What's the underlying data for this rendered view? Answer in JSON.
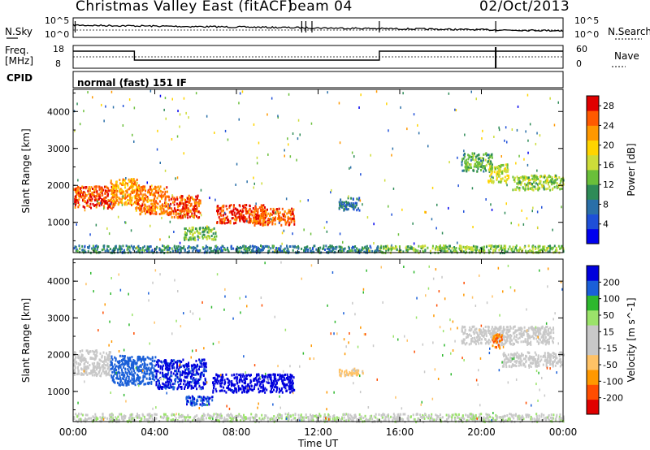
{
  "header": {
    "station": "Christmas Valley East (fitACF)",
    "beam": "beam 04",
    "date": "02/Oct/2013"
  },
  "noise_panel": {
    "left_label": "N.Sky",
    "right_label": "N.Search",
    "left_ticks": [
      "10^5",
      "10^0"
    ],
    "right_ticks": [
      "10^5",
      "10^0"
    ]
  },
  "freq_panel": {
    "left_label_line1": "Freq.",
    "left_label_line2": "[MHz]",
    "right_label": "Nave",
    "left_ticks": [
      "18",
      "8"
    ],
    "right_ticks": [
      "60",
      "0"
    ]
  },
  "cpid": {
    "label": "CPID",
    "value": "normal (fast) 151 IF"
  },
  "chart_data": [
    {
      "type": "heatmap",
      "title": "",
      "xlabel": "Time UT",
      "ylabel": "Slant Range [km]",
      "x_ticks": [
        "00:00",
        "04:00",
        "08:00",
        "12:00",
        "16:00",
        "20:00",
        "00:00"
      ],
      "xlim_hours": [
        0,
        24
      ],
      "y_ticks": [
        "1000",
        "2000",
        "3000",
        "4000"
      ],
      "ylim_km": [
        180,
        4600
      ],
      "colorbar": {
        "label": "Power [dB]",
        "ticks": [
          "4",
          "8",
          "12",
          "16",
          "20",
          "24",
          "28"
        ],
        "range": [
          0,
          30
        ],
        "colors": [
          "#0000ee",
          "#1e4fd8",
          "#2a6fa8",
          "#2e8b57",
          "#6abf3a",
          "#cddc39",
          "#ffd400",
          "#ff9800",
          "#ff5a00",
          "#e00000"
        ]
      },
      "features": [
        {
          "t0": 0.0,
          "t1": 2.0,
          "r0": 1400,
          "r1": 2000,
          "level": 26
        },
        {
          "t0": 1.8,
          "t1": 3.2,
          "r0": 1500,
          "r1": 2200,
          "level": 22
        },
        {
          "t0": 3.0,
          "t1": 4.6,
          "r0": 1250,
          "r1": 2000,
          "level": 24
        },
        {
          "t0": 4.6,
          "t1": 6.2,
          "r0": 1150,
          "r1": 1750,
          "level": 26
        },
        {
          "t0": 5.4,
          "t1": 7.0,
          "r0": 550,
          "r1": 900,
          "level": 14
        },
        {
          "t0": 7.0,
          "t1": 9.4,
          "r0": 1000,
          "r1": 1500,
          "level": 27
        },
        {
          "t0": 8.8,
          "t1": 10.8,
          "r0": 950,
          "r1": 1400,
          "level": 25
        },
        {
          "t0": 0.0,
          "t1": 15.0,
          "r0": 200,
          "r1": 400,
          "level": 9
        },
        {
          "t0": 15.0,
          "t1": 24.0,
          "r0": 200,
          "r1": 400,
          "level": 14
        },
        {
          "t0": 13.0,
          "t1": 14.0,
          "r0": 1350,
          "r1": 1700,
          "level": 8
        },
        {
          "t0": 19.0,
          "t1": 20.5,
          "r0": 2400,
          "r1": 2900,
          "level": 12
        },
        {
          "t0": 20.3,
          "t1": 21.3,
          "r0": 2100,
          "r1": 2600,
          "level": 17
        },
        {
          "t0": 21.5,
          "t1": 24.0,
          "r0": 1900,
          "r1": 2300,
          "level": 15
        }
      ]
    },
    {
      "type": "heatmap",
      "title": "",
      "xlabel": "Time UT",
      "ylabel": "Slant Range [km]",
      "x_ticks": [
        "00:00",
        "04:00",
        "08:00",
        "12:00",
        "16:00",
        "20:00",
        "00:00"
      ],
      "xlim_hours": [
        0,
        24
      ],
      "y_ticks": [
        "1000",
        "2000",
        "3000",
        "4000"
      ],
      "ylim_km": [
        180,
        4600
      ],
      "colorbar": {
        "label": "Velocity [m s^-1]",
        "ticks": [
          "200",
          "100",
          "50",
          "15",
          "-15",
          "-50",
          "-100",
          "-200"
        ],
        "range": [
          -250,
          250
        ],
        "colors": [
          "#e00000",
          "#ff4d00",
          "#ff9800",
          "#ffc266",
          "#c8c8c8",
          "#c8c8c8",
          "#9be36a",
          "#2eb82e",
          "#1a5fd8",
          "#0000dd"
        ]
      },
      "features": [
        {
          "t0": 0.0,
          "t1": 1.8,
          "r0": 1450,
          "r1": 2150,
          "level": 0
        },
        {
          "t0": 1.8,
          "t1": 4.0,
          "r0": 1200,
          "r1": 2000,
          "level": 180
        },
        {
          "t0": 4.0,
          "t1": 6.5,
          "r0": 1100,
          "r1": 1900,
          "level": 210
        },
        {
          "t0": 5.5,
          "t1": 7.0,
          "r0": 650,
          "r1": 900,
          "level": 190
        },
        {
          "t0": 6.8,
          "t1": 10.8,
          "r0": 1000,
          "r1": 1500,
          "level": 220
        },
        {
          "t0": 0.0,
          "t1": 24.0,
          "r0": 200,
          "r1": 420,
          "level": 40
        },
        {
          "t0": 13.0,
          "t1": 14.2,
          "r0": 1450,
          "r1": 1650,
          "level": -60
        },
        {
          "t0": 19.0,
          "t1": 23.5,
          "r0": 2300,
          "r1": 2800,
          "level": 0
        },
        {
          "t0": 20.5,
          "t1": 21.0,
          "r0": 2200,
          "r1": 2600,
          "level": -150
        },
        {
          "t0": 21.0,
          "t1": 24.0,
          "r0": 1700,
          "r1": 2100,
          "level": 0
        }
      ]
    }
  ]
}
